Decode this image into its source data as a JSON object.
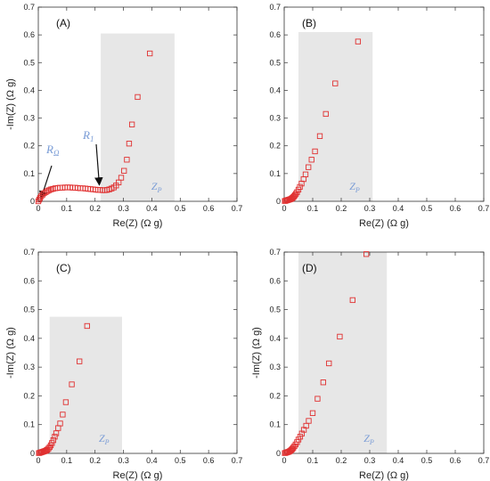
{
  "chart_data": [
    {
      "type": "scatter",
      "panel": "(A)",
      "xlabel": "Re(Z) (Ω g)",
      "ylabel": "-Im(Z) (Ω g)",
      "xlim": [
        0,
        0.7
      ],
      "ylim": [
        0,
        0.7
      ],
      "xticks": [
        "0",
        "0.1",
        "0.2",
        "0.3",
        "0.4",
        "0.5",
        "0.6",
        "0.7"
      ],
      "yticks": [
        "0",
        "0.1",
        "0.2",
        "0.3",
        "0.4",
        "0.5",
        "0.6",
        "0.7"
      ],
      "shaded_region": {
        "x": [
          0.22,
          0.48
        ],
        "y": [
          0,
          0.605
        ],
        "label": "Z_P"
      },
      "annotations": [
        {
          "text": "R_Ω",
          "target": [
            0.0,
            0.0
          ]
        },
        {
          "text": "R_1",
          "target": [
            0.215,
            0.04
          ]
        }
      ],
      "marker_color": "#e03030",
      "points": [
        [
          0.0,
          0.0
        ],
        [
          0.003,
          0.006
        ],
        [
          0.006,
          0.012
        ],
        [
          0.01,
          0.018
        ],
        [
          0.015,
          0.024
        ],
        [
          0.02,
          0.029
        ],
        [
          0.026,
          0.033
        ],
        [
          0.032,
          0.037
        ],
        [
          0.038,
          0.04
        ],
        [
          0.045,
          0.043
        ],
        [
          0.052,
          0.045
        ],
        [
          0.06,
          0.047
        ],
        [
          0.068,
          0.048
        ],
        [
          0.076,
          0.049
        ],
        [
          0.085,
          0.049
        ],
        [
          0.094,
          0.05
        ],
        [
          0.103,
          0.05
        ],
        [
          0.112,
          0.05
        ],
        [
          0.121,
          0.049
        ],
        [
          0.13,
          0.049
        ],
        [
          0.139,
          0.048
        ],
        [
          0.148,
          0.047
        ],
        [
          0.157,
          0.047
        ],
        [
          0.166,
          0.046
        ],
        [
          0.175,
          0.045
        ],
        [
          0.184,
          0.044
        ],
        [
          0.193,
          0.043
        ],
        [
          0.202,
          0.042
        ],
        [
          0.21,
          0.041
        ],
        [
          0.218,
          0.041
        ],
        [
          0.226,
          0.04
        ],
        [
          0.234,
          0.04
        ],
        [
          0.242,
          0.041
        ],
        [
          0.25,
          0.043
        ],
        [
          0.258,
          0.046
        ],
        [
          0.266,
          0.05
        ],
        [
          0.274,
          0.057
        ],
        [
          0.283,
          0.068
        ],
        [
          0.292,
          0.085
        ],
        [
          0.302,
          0.11
        ],
        [
          0.312,
          0.15
        ],
        [
          0.32,
          0.208
        ],
        [
          0.33,
          0.277
        ],
        [
          0.35,
          0.376
        ],
        [
          0.393,
          0.533
        ]
      ]
    },
    {
      "type": "scatter",
      "panel": "(B)",
      "xlabel": "Re(Z) (Ω g)",
      "ylabel": "",
      "xlim": [
        0,
        0.7
      ],
      "ylim": [
        0,
        0.7
      ],
      "xticks": [
        "0",
        "0.1",
        "0.2",
        "0.3",
        "0.4",
        "0.5",
        "0.6",
        "0.7"
      ],
      "yticks": [
        "0",
        "0.1",
        "0.2",
        "0.3",
        "0.4",
        "0.5",
        "0.6",
        "0.7"
      ],
      "shaded_region": {
        "x": [
          0.05,
          0.31
        ],
        "y": [
          0,
          0.61
        ],
        "label": "Z_P"
      },
      "marker_color": "#e03030",
      "points": [
        [
          0.002,
          0.001
        ],
        [
          0.005,
          0.002
        ],
        [
          0.008,
          0.003
        ],
        [
          0.011,
          0.004
        ],
        [
          0.014,
          0.005
        ],
        [
          0.017,
          0.006
        ],
        [
          0.02,
          0.007
        ],
        [
          0.023,
          0.008
        ],
        [
          0.026,
          0.01
        ],
        [
          0.029,
          0.012
        ],
        [
          0.032,
          0.015
        ],
        [
          0.035,
          0.018
        ],
        [
          0.038,
          0.022
        ],
        [
          0.041,
          0.027
        ],
        [
          0.045,
          0.033
        ],
        [
          0.05,
          0.042
        ],
        [
          0.055,
          0.052
        ],
        [
          0.061,
          0.064
        ],
        [
          0.068,
          0.08
        ],
        [
          0.075,
          0.097
        ],
        [
          0.085,
          0.123
        ],
        [
          0.096,
          0.15
        ],
        [
          0.108,
          0.18
        ],
        [
          0.125,
          0.235
        ],
        [
          0.146,
          0.315
        ],
        [
          0.179,
          0.425
        ],
        [
          0.259,
          0.576
        ]
      ]
    },
    {
      "type": "scatter",
      "panel": "(C)",
      "xlabel": "Re(Z) (Ω g)",
      "ylabel": "-Im(Z) (Ω g)",
      "xlim": [
        0,
        0.7
      ],
      "ylim": [
        0,
        0.7
      ],
      "xticks": [
        "0",
        "0.1",
        "0.2",
        "0.3",
        "0.4",
        "0.5",
        "0.6",
        "0.7"
      ],
      "yticks": [
        "0",
        "0.1",
        "0.2",
        "0.3",
        "0.4",
        "0.5",
        "0.6",
        "0.7"
      ],
      "shaded_region": {
        "x": [
          0.04,
          0.295
        ],
        "y": [
          0,
          0.475
        ],
        "label": "Z_P"
      },
      "marker_color": "#e03030",
      "points": [
        [
          0.002,
          0.001
        ],
        [
          0.005,
          0.002
        ],
        [
          0.008,
          0.003
        ],
        [
          0.011,
          0.004
        ],
        [
          0.014,
          0.005
        ],
        [
          0.017,
          0.006
        ],
        [
          0.02,
          0.007
        ],
        [
          0.023,
          0.008
        ],
        [
          0.026,
          0.009
        ],
        [
          0.029,
          0.011
        ],
        [
          0.032,
          0.013
        ],
        [
          0.036,
          0.017
        ],
        [
          0.04,
          0.022
        ],
        [
          0.044,
          0.028
        ],
        [
          0.048,
          0.036
        ],
        [
          0.053,
          0.046
        ],
        [
          0.058,
          0.058
        ],
        [
          0.063,
          0.07
        ],
        [
          0.07,
          0.088
        ],
        [
          0.077,
          0.104
        ],
        [
          0.086,
          0.135
        ],
        [
          0.097,
          0.178
        ],
        [
          0.118,
          0.24
        ],
        [
          0.145,
          0.32
        ],
        [
          0.172,
          0.443
        ]
      ]
    },
    {
      "type": "scatter",
      "panel": "(D)",
      "xlabel": "Re(Z) (Ω g)",
      "ylabel": "-Im(Z) (Ω g)",
      "xlim": [
        0,
        0.7
      ],
      "ylim": [
        0,
        0.7
      ],
      "xticks": [
        "0",
        "0.1",
        "0.2",
        "0.3",
        "0.4",
        "0.5",
        "0.6",
        "0.7"
      ],
      "yticks": [
        "0",
        "0.1",
        "0.2",
        "0.3",
        "0.4",
        "0.5",
        "0.6",
        "0.7"
      ],
      "shaded_region": {
        "x": [
          0.05,
          0.36
        ],
        "y": [
          0,
          0.7
        ],
        "label": "Z_P"
      },
      "marker_color": "#e03030",
      "points": [
        [
          0.002,
          0.001
        ],
        [
          0.005,
          0.002
        ],
        [
          0.008,
          0.003
        ],
        [
          0.011,
          0.004
        ],
        [
          0.014,
          0.005
        ],
        [
          0.017,
          0.006
        ],
        [
          0.02,
          0.008
        ],
        [
          0.023,
          0.01
        ],
        [
          0.026,
          0.013
        ],
        [
          0.029,
          0.016
        ],
        [
          0.032,
          0.02
        ],
        [
          0.036,
          0.025
        ],
        [
          0.04,
          0.031
        ],
        [
          0.045,
          0.039
        ],
        [
          0.05,
          0.048
        ],
        [
          0.056,
          0.058
        ],
        [
          0.062,
          0.069
        ],
        [
          0.069,
          0.082
        ],
        [
          0.077,
          0.096
        ],
        [
          0.086,
          0.113
        ],
        [
          0.1,
          0.14
        ],
        [
          0.117,
          0.19
        ],
        [
          0.137,
          0.247
        ],
        [
          0.157,
          0.313
        ],
        [
          0.195,
          0.406
        ],
        [
          0.24,
          0.533
        ],
        [
          0.288,
          0.693
        ]
      ]
    }
  ]
}
